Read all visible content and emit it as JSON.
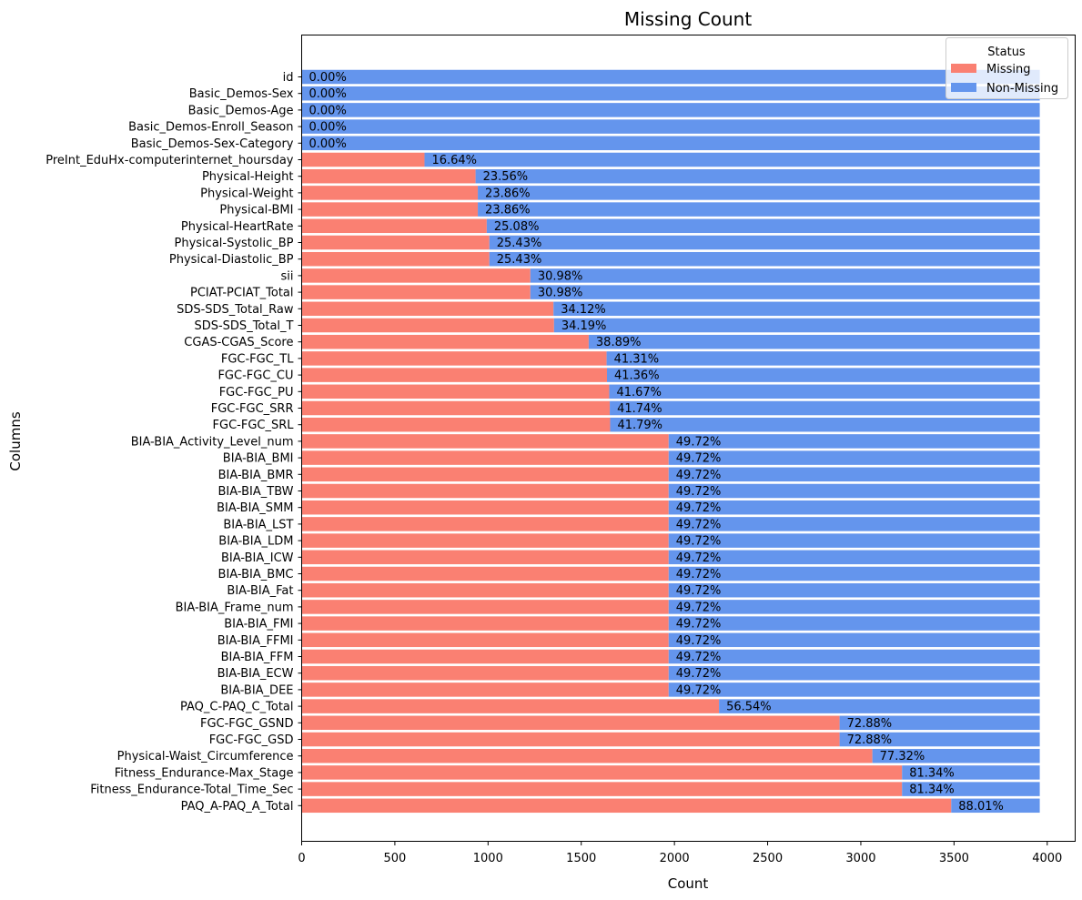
{
  "colors": {
    "missing": "#FA8072",
    "non_missing": "#6495ED"
  },
  "chart_data": {
    "type": "bar",
    "orientation": "horizontal",
    "stacked": true,
    "title": "Missing Count",
    "xlabel": "Count",
    "ylabel": "Columns",
    "xlim": [
      0,
      4150
    ],
    "xticks": [
      0,
      500,
      1000,
      1500,
      2000,
      2500,
      3000,
      3500,
      4000
    ],
    "total": 3960,
    "legend": {
      "title": "Status",
      "placement": "top-right",
      "entries": [
        "Missing",
        "Non-Missing"
      ]
    },
    "categories": [
      "id",
      "Basic_Demos-Sex",
      "Basic_Demos-Age",
      "Basic_Demos-Enroll_Season",
      "Basic_Demos-Sex-Category",
      "PreInt_EduHx-computerinternet_hoursday",
      "Physical-Height",
      "Physical-Weight",
      "Physical-BMI",
      "Physical-HeartRate",
      "Physical-Systolic_BP",
      "Physical-Diastolic_BP",
      "sii",
      "PCIAT-PCIAT_Total",
      "SDS-SDS_Total_Raw",
      "SDS-SDS_Total_T",
      "CGAS-CGAS_Score",
      "FGC-FGC_TL",
      "FGC-FGC_CU",
      "FGC-FGC_PU",
      "FGC-FGC_SRR",
      "FGC-FGC_SRL",
      "BIA-BIA_Activity_Level_num",
      "BIA-BIA_BMI",
      "BIA-BIA_BMR",
      "BIA-BIA_TBW",
      "BIA-BIA_SMM",
      "BIA-BIA_LST",
      "BIA-BIA_LDM",
      "BIA-BIA_ICW",
      "BIA-BIA_BMC",
      "BIA-BIA_Fat",
      "BIA-BIA_Frame_num",
      "BIA-BIA_FMI",
      "BIA-BIA_FFMI",
      "BIA-BIA_FFM",
      "BIA-BIA_ECW",
      "BIA-BIA_DEE",
      "PAQ_C-PAQ_C_Total",
      "FGC-FGC_GSND",
      "FGC-FGC_GSD",
      "Physical-Waist_Circumference",
      "Fitness_Endurance-Max_Stage",
      "Fitness_Endurance-Total_Time_Sec",
      "PAQ_A-PAQ_A_Total"
    ],
    "series": [
      {
        "name": "Missing",
        "values": [
          0,
          0,
          0,
          0,
          0,
          659,
          933,
          945,
          945,
          993,
          1007,
          1007,
          1227,
          1227,
          1351,
          1354,
          1540,
          1636,
          1638,
          1650,
          1653,
          1655,
          1969,
          1969,
          1969,
          1969,
          1969,
          1969,
          1969,
          1969,
          1969,
          1969,
          1969,
          1969,
          1969,
          1969,
          1969,
          1969,
          2239,
          2886,
          2886,
          3062,
          3221,
          3221,
          3485
        ]
      },
      {
        "name": "Non-Missing",
        "values": [
          3960,
          3960,
          3960,
          3960,
          3960,
          3301,
          3027,
          3015,
          3015,
          2967,
          2953,
          2953,
          2733,
          2733,
          2609,
          2606,
          2420,
          2324,
          2322,
          2310,
          2307,
          2305,
          1991,
          1991,
          1991,
          1991,
          1991,
          1991,
          1991,
          1991,
          1991,
          1991,
          1991,
          1991,
          1991,
          1991,
          1991,
          1991,
          1721,
          1074,
          1074,
          898,
          739,
          739,
          475
        ]
      }
    ],
    "data_labels": [
      "0.00%",
      "0.00%",
      "0.00%",
      "0.00%",
      "0.00%",
      "16.64%",
      "23.56%",
      "23.86%",
      "23.86%",
      "25.08%",
      "25.43%",
      "25.43%",
      "30.98%",
      "30.98%",
      "34.12%",
      "34.19%",
      "38.89%",
      "41.31%",
      "41.36%",
      "41.67%",
      "41.74%",
      "41.79%",
      "49.72%",
      "49.72%",
      "49.72%",
      "49.72%",
      "49.72%",
      "49.72%",
      "49.72%",
      "49.72%",
      "49.72%",
      "49.72%",
      "49.72%",
      "49.72%",
      "49.72%",
      "49.72%",
      "49.72%",
      "49.72%",
      "56.54%",
      "72.88%",
      "72.88%",
      "77.32%",
      "81.34%",
      "81.34%",
      "88.01%"
    ]
  }
}
